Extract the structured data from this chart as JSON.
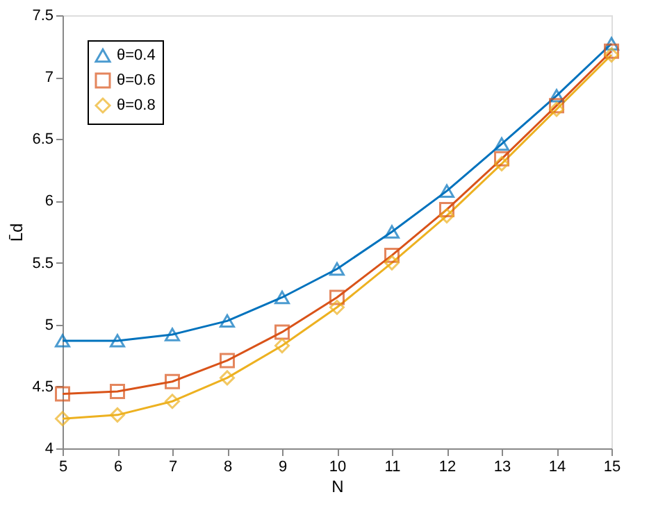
{
  "chart_data": {
    "type": "line",
    "xlabel": "N",
    "ylabel": "L̄d",
    "x": [
      5,
      6,
      7,
      8,
      9,
      10,
      11,
      12,
      13,
      14,
      15
    ],
    "series": [
      {
        "name": "θ=0.4",
        "color": "#0072bd",
        "marker": "triangle",
        "values": [
          4.87,
          4.87,
          4.92,
          5.03,
          5.22,
          5.45,
          5.75,
          6.08,
          6.46,
          6.85,
          7.27
        ]
      },
      {
        "name": "θ=0.6",
        "color": "#d95319",
        "marker": "square",
        "values": [
          4.44,
          4.46,
          4.54,
          4.71,
          4.94,
          5.22,
          5.56,
          5.93,
          6.34,
          6.77,
          7.21
        ]
      },
      {
        "name": "θ=0.8",
        "color": "#edb120",
        "marker": "diamond",
        "values": [
          4.24,
          4.27,
          4.38,
          4.57,
          4.83,
          5.14,
          5.5,
          5.88,
          6.3,
          6.74,
          7.18
        ]
      }
    ],
    "xlim": [
      5,
      15
    ],
    "xticks": [
      5,
      6,
      7,
      8,
      9,
      10,
      11,
      12,
      13,
      14,
      15
    ],
    "ylim": [
      4,
      7.5
    ],
    "yticks": [
      4,
      4.5,
      5,
      5.5,
      6,
      6.5,
      7,
      7.5
    ],
    "grid": false,
    "legend": "top left",
    "line_style": "solid"
  }
}
